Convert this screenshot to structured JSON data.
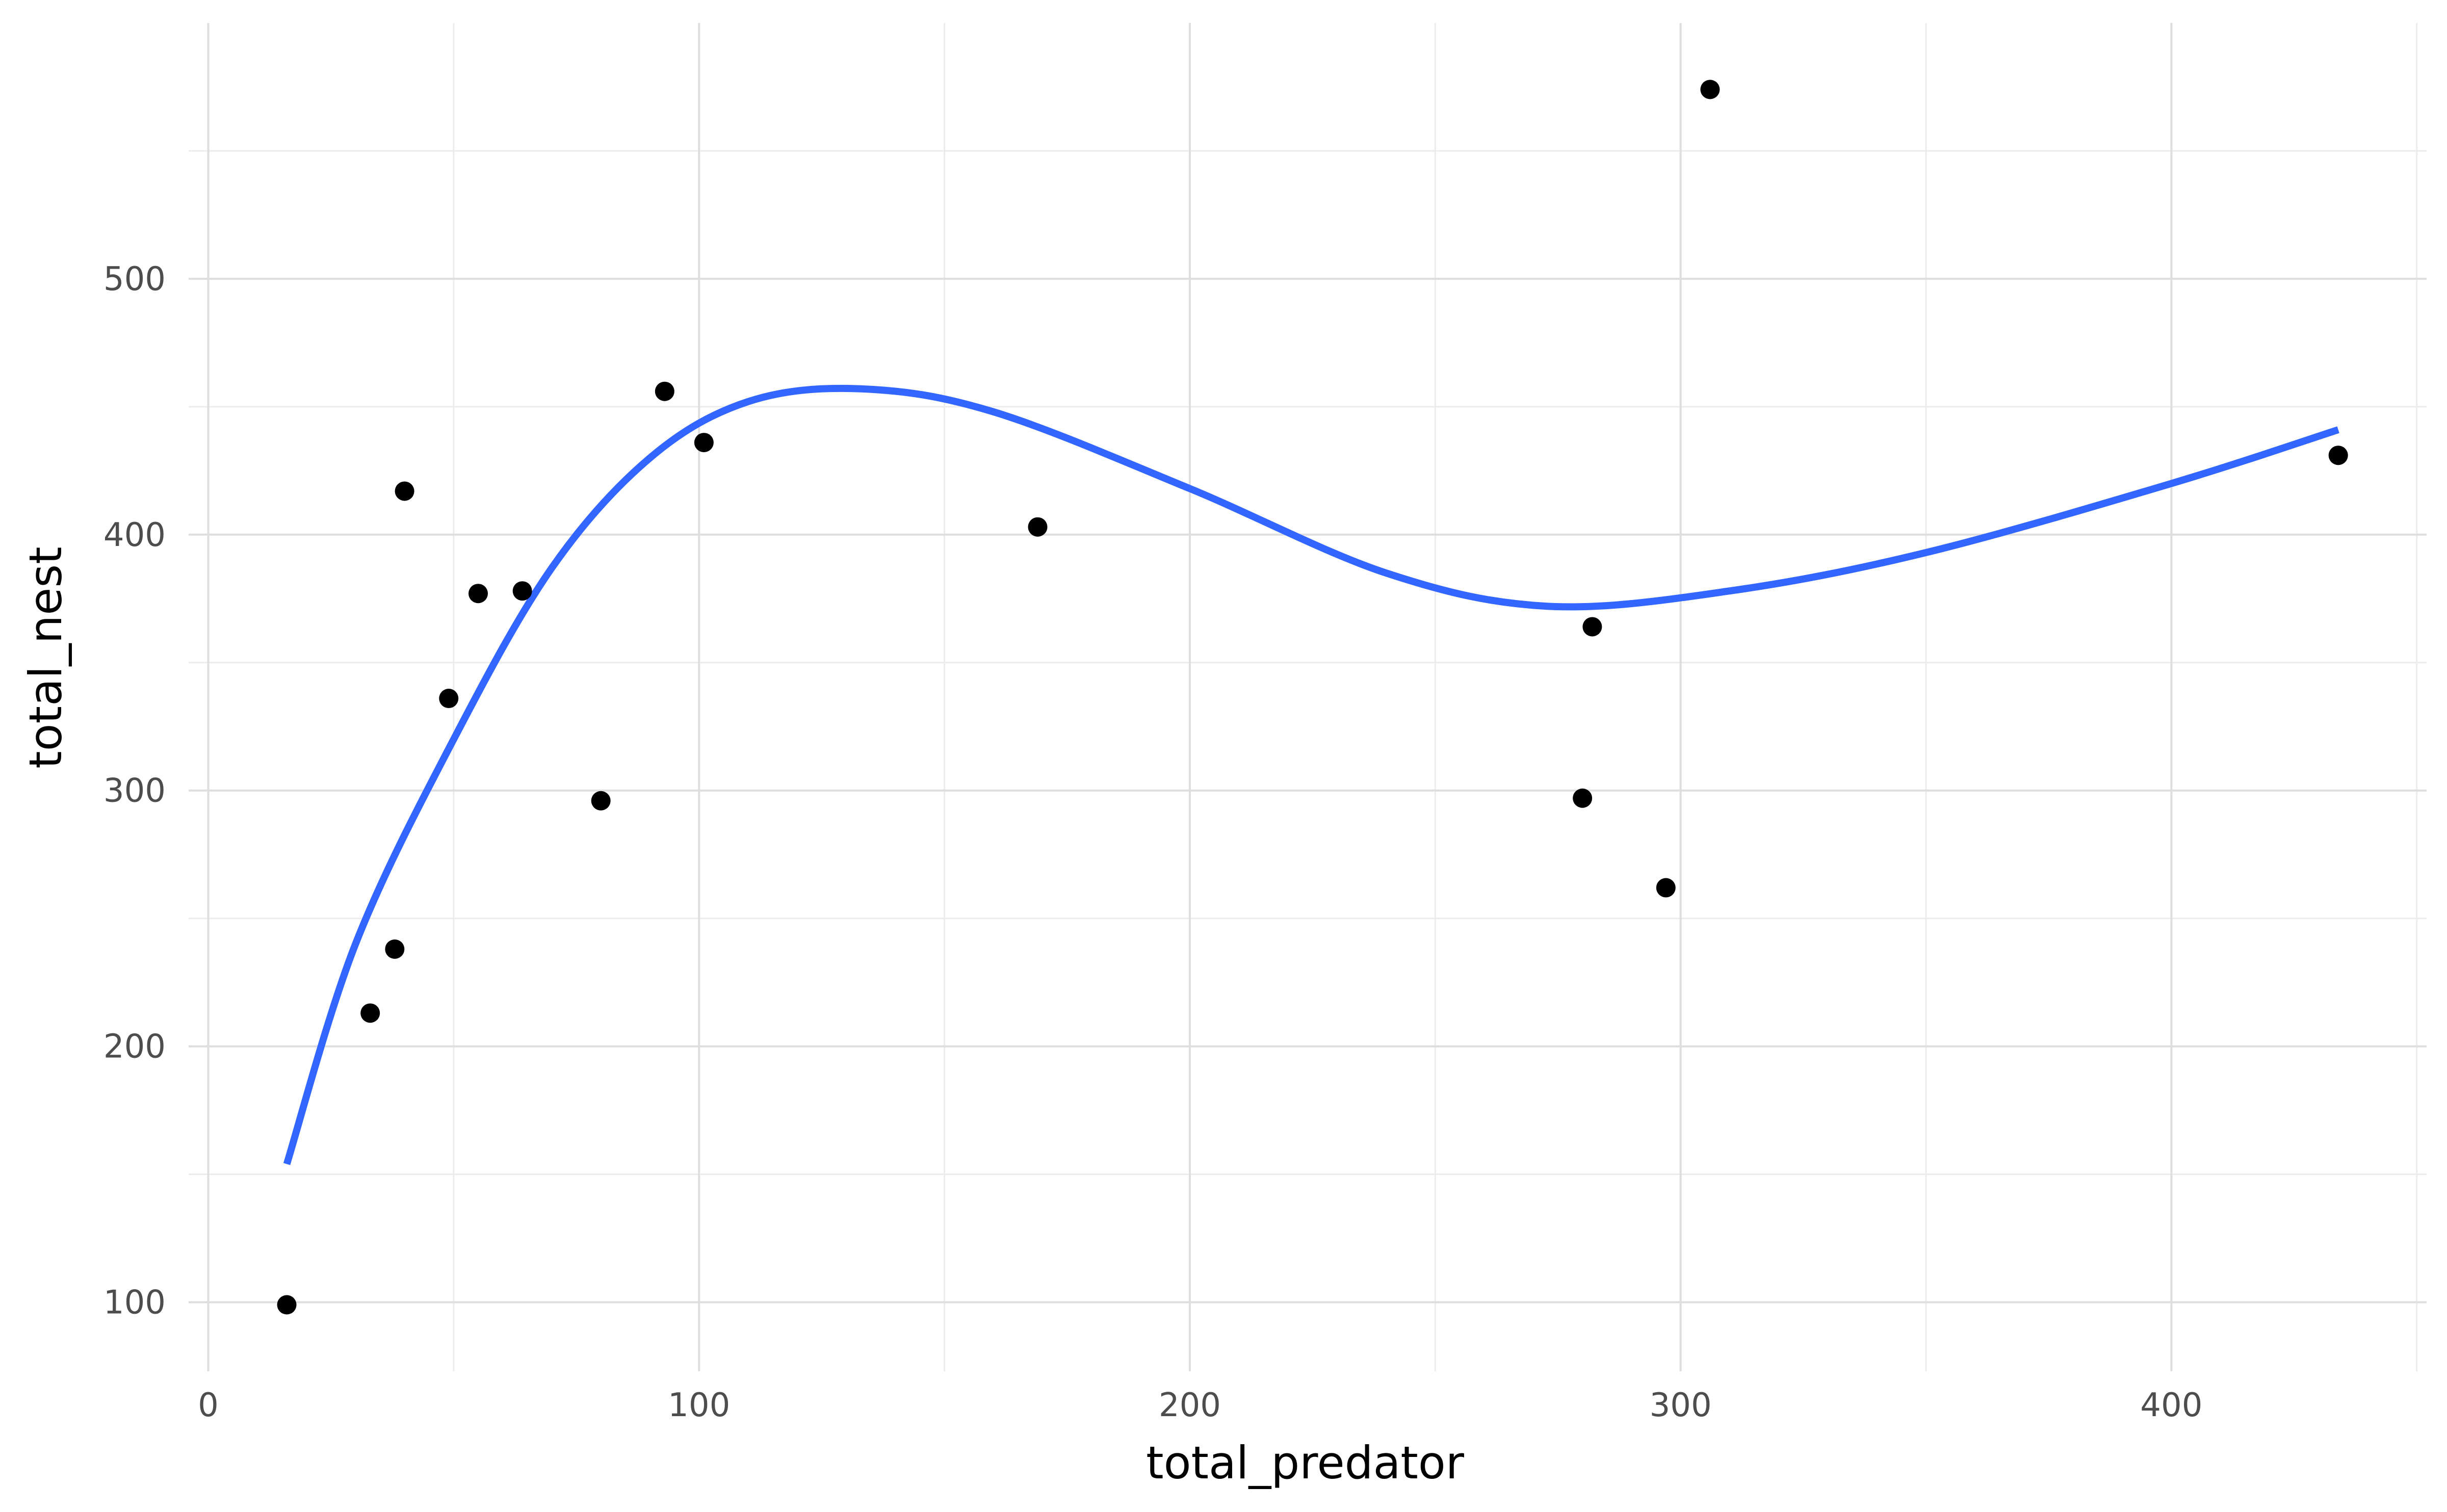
{
  "chart_data": {
    "type": "scatter",
    "title": "",
    "xlabel": "total_predator",
    "ylabel": "total_nest",
    "xlim": [
      -4,
      452
    ],
    "ylim": [
      73,
      600
    ],
    "x_ticks": [
      0,
      100,
      200,
      300,
      400
    ],
    "y_ticks": [
      100,
      200,
      300,
      400,
      500
    ],
    "x_tick_labels": [
      "0",
      "100",
      "200",
      "300",
      "400"
    ],
    "y_tick_labels": [
      "100",
      "200",
      "300",
      "400",
      "500"
    ],
    "grid": true,
    "legend": "none",
    "points": [
      {
        "x": 16,
        "y": 99
      },
      {
        "x": 33,
        "y": 213
      },
      {
        "x": 38,
        "y": 238
      },
      {
        "x": 40,
        "y": 417
      },
      {
        "x": 49,
        "y": 336
      },
      {
        "x": 55,
        "y": 377
      },
      {
        "x": 64,
        "y": 378
      },
      {
        "x": 80,
        "y": 296
      },
      {
        "x": 93,
        "y": 456
      },
      {
        "x": 101,
        "y": 436
      },
      {
        "x": 169,
        "y": 403
      },
      {
        "x": 280,
        "y": 297
      },
      {
        "x": 282,
        "y": 364
      },
      {
        "x": 297,
        "y": 262
      },
      {
        "x": 306,
        "y": 574
      },
      {
        "x": 434,
        "y": 431
      }
    ],
    "smooth_line": {
      "x": [
        16,
        30,
        50,
        70,
        90,
        110,
        133,
        160,
        200,
        240,
        273,
        310,
        350,
        400,
        434
      ],
      "y": [
        154,
        240,
        320,
        387,
        430,
        452,
        457,
        448,
        418,
        385,
        372,
        378,
        393,
        420,
        441
      ]
    },
    "colors": {
      "points": "#000000",
      "smooth_line": "#3366ff",
      "grid_major": "#dedede",
      "grid_minor": "#ececec",
      "tick_labels": "#4d4d4d",
      "axis_titles": "#000000",
      "background": "#ffffff"
    }
  }
}
